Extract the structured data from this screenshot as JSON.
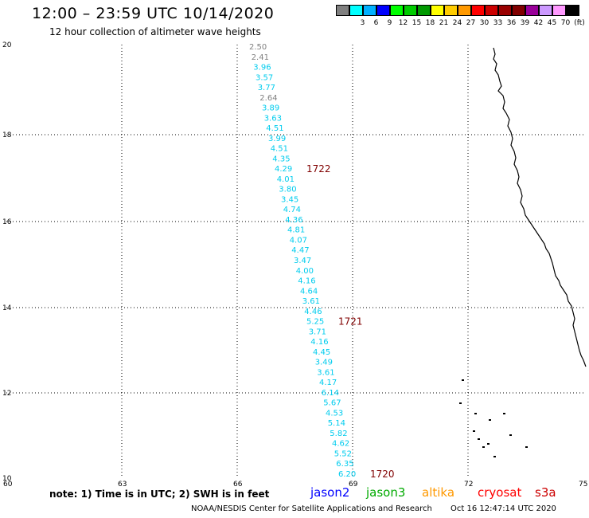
{
  "header": {
    "title": "12:00 – 23:59 UTC 10/14/2020",
    "subtitle": "12 hour collection of altimeter wave heights"
  },
  "legend": {
    "units": "(ft)",
    "entries": [
      {
        "label": "",
        "color": "#808080"
      },
      {
        "label": "3",
        "color": "#00ffff"
      },
      {
        "label": "6",
        "color": "#00b0ff"
      },
      {
        "label": "9",
        "color": "#0000ff"
      },
      {
        "label": "12",
        "color": "#00ff00"
      },
      {
        "label": "15",
        "color": "#00cc00"
      },
      {
        "label": "18",
        "color": "#009900"
      },
      {
        "label": "21",
        "color": "#ffff00"
      },
      {
        "label": "24",
        "color": "#ffcc00"
      },
      {
        "label": "27",
        "color": "#ff9900"
      },
      {
        "label": "30",
        "color": "#ff0000"
      },
      {
        "label": "33",
        "color": "#cc0000"
      },
      {
        "label": "36",
        "color": "#990000"
      },
      {
        "label": "39",
        "color": "#800000"
      },
      {
        "label": "42",
        "color": "#990099"
      },
      {
        "label": "45",
        "color": "#cc99ff"
      },
      {
        "label": "70",
        "color": "#ff99ff"
      },
      {
        "label": "",
        "color": "#000000"
      }
    ]
  },
  "axes": {
    "lon_ticks": [
      "60",
      "63",
      "66",
      "69",
      "72",
      "75"
    ],
    "lat_ticks": [
      "10",
      "12",
      "14",
      "16",
      "18",
      "20"
    ]
  },
  "track": {
    "readings": [
      {
        "value": "2.50",
        "color": "#808080"
      },
      {
        "value": "2.41",
        "color": "#808080"
      },
      {
        "value": "3.96",
        "color": "#00ccee"
      },
      {
        "value": "3.57",
        "color": "#00ccee"
      },
      {
        "value": "3.77",
        "color": "#00ccee"
      },
      {
        "value": "2.64",
        "color": "#808080"
      },
      {
        "value": "3.89",
        "color": "#00ccee"
      },
      {
        "value": "3.63",
        "color": "#00ccee"
      },
      {
        "value": "4.51",
        "color": "#00ccee"
      },
      {
        "value": "3.99",
        "color": "#00ccee"
      },
      {
        "value": "4.51",
        "color": "#00ccee"
      },
      {
        "value": "4.35",
        "color": "#00ccee"
      },
      {
        "value": "4.29",
        "color": "#00ccee"
      },
      {
        "value": "4.01",
        "color": "#00ccee"
      },
      {
        "value": "3.80",
        "color": "#00ccee"
      },
      {
        "value": "3.45",
        "color": "#00ccee"
      },
      {
        "value": "4.74",
        "color": "#00ccee"
      },
      {
        "value": "4.36",
        "color": "#00ccee"
      },
      {
        "value": "4.81",
        "color": "#00ccee"
      },
      {
        "value": "4.07",
        "color": "#00ccee"
      },
      {
        "value": "4.47",
        "color": "#00ccee"
      },
      {
        "value": "3.47",
        "color": "#00ccee"
      },
      {
        "value": "4.00",
        "color": "#00ccee"
      },
      {
        "value": "4.16",
        "color": "#00ccee"
      },
      {
        "value": "4.64",
        "color": "#00ccee"
      },
      {
        "value": "3.61",
        "color": "#00ccee"
      },
      {
        "value": "4.46",
        "color": "#00ccee"
      },
      {
        "value": "5.25",
        "color": "#00ccee"
      },
      {
        "value": "3.71",
        "color": "#00ccee"
      },
      {
        "value": "4.16",
        "color": "#00ccee"
      },
      {
        "value": "4.45",
        "color": "#00ccee"
      },
      {
        "value": "3.49",
        "color": "#00ccee"
      },
      {
        "value": "3.61",
        "color": "#00ccee"
      },
      {
        "value": "4.17",
        "color": "#00ccee"
      },
      {
        "value": "6.14",
        "color": "#00ccee"
      },
      {
        "value": "5.67",
        "color": "#00ccee"
      },
      {
        "value": "4.53",
        "color": "#00ccee"
      },
      {
        "value": "5.14",
        "color": "#00ccee"
      },
      {
        "value": "5.82",
        "color": "#00ccee"
      },
      {
        "value": "4.62",
        "color": "#00ccee"
      },
      {
        "value": "5.52",
        "color": "#00ccee"
      },
      {
        "value": "6.35",
        "color": "#00ccee"
      },
      {
        "value": "6.20",
        "color": "#00ccee"
      }
    ],
    "time_labels": [
      {
        "text": "1722",
        "after_reading": 12
      },
      {
        "text": "1721",
        "after_reading": 27
      },
      {
        "text": "1720",
        "after_reading": 42
      }
    ],
    "time_label_color": "#800000"
  },
  "footer": {
    "note": "note: 1) Time is in UTC; 2) SWH is in feet",
    "satellites": [
      {
        "name": "jason2",
        "color": "#0000ff"
      },
      {
        "name": "jason3",
        "color": "#00aa00"
      },
      {
        "name": "altika",
        "color": "#ff9900"
      },
      {
        "name": "cryosat",
        "color": "#ff0000"
      },
      {
        "name": "s3a",
        "color": "#cc0000"
      }
    ],
    "credit": "NOAA/NESDIS Center for Satellite Applications and Research",
    "timestamp": "Oct 16 12:47:14 UTC 2020"
  }
}
